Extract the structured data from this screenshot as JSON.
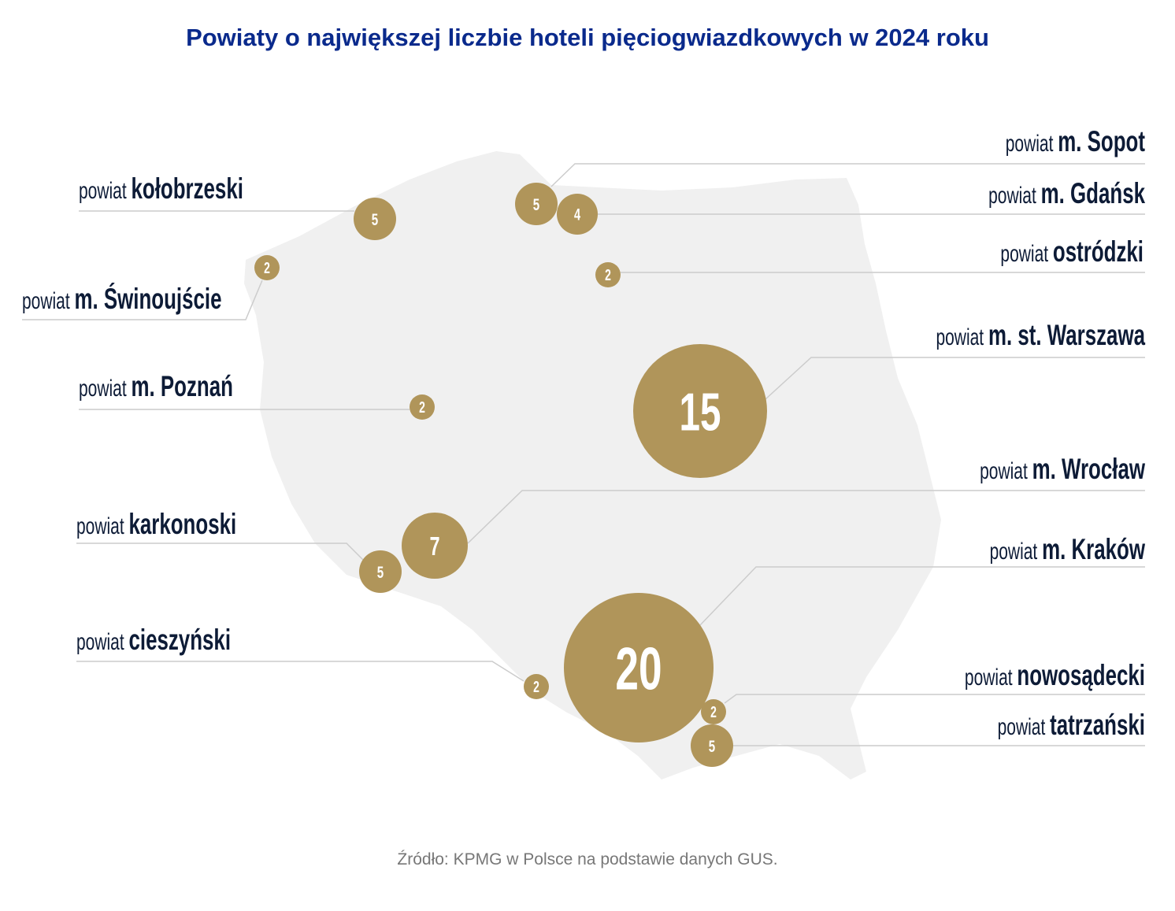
{
  "title": "Powiaty o największej liczbie hoteli pięciogwiazdkowych w 2024 roku",
  "source": "Źródło: KPMG w Polsce na podstawie danych GUS.",
  "colors": {
    "bubble": "#b0955a",
    "map": "#f0f0f0",
    "label": "#0d1b36",
    "title": "#0a2a8c",
    "leader_line": "#cccccc"
  },
  "chart_data": {
    "type": "bubble-map",
    "title": "Powiaty o największej liczbie hoteli pięciogwiazdkowych w 2024 roku",
    "regions": [
      {
        "prefix": "powiat",
        "name": "m. Sopot",
        "value": 5
      },
      {
        "prefix": "powiat",
        "name": "m. Gdańsk",
        "value": 4
      },
      {
        "prefix": "powiat",
        "name": "ostródzki",
        "value": 2
      },
      {
        "prefix": "powiat",
        "name": "m. st. Warszawa",
        "value": 15
      },
      {
        "prefix": "powiat",
        "name": "m. Wrocław",
        "value": 7
      },
      {
        "prefix": "powiat",
        "name": "m. Kraków",
        "value": 20
      },
      {
        "prefix": "powiat",
        "name": "nowosądecki",
        "value": 2
      },
      {
        "prefix": "powiat",
        "name": "tatrzański",
        "value": 5
      },
      {
        "prefix": "powiat",
        "name": "kołobrzeski",
        "value": 5
      },
      {
        "prefix": "powiat",
        "name": "m. Świnoujście",
        "value": 2
      },
      {
        "prefix": "powiat",
        "name": "m. Poznań",
        "value": 2
      },
      {
        "prefix": "powiat",
        "name": "karkonoski",
        "value": 5
      },
      {
        "prefix": "powiat",
        "name": "cieszyński",
        "value": 2
      }
    ]
  }
}
